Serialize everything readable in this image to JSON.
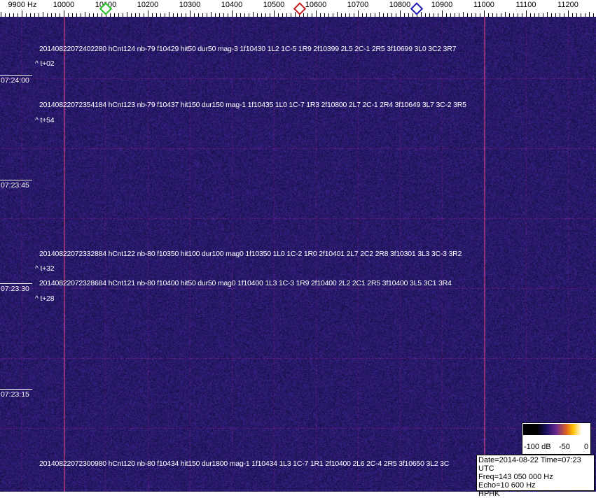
{
  "freq_scale": {
    "unit_label": "9900 Hz",
    "labels": [
      "10000",
      "10100",
      "10200",
      "10300",
      "10400",
      "10500",
      "10600",
      "10700",
      "10800",
      "10900",
      "11000",
      "11100",
      "11200"
    ],
    "markers": [
      {
        "name": "green-marker",
        "freq_hz": 10100,
        "color": "#22c322"
      },
      {
        "name": "red-marker",
        "freq_hz": 10562,
        "color": "#c81e1e"
      },
      {
        "name": "blue-marker",
        "freq_hz": 10840,
        "color": "#1e1eb4"
      }
    ]
  },
  "time_labels": [
    "07:24:00",
    "07:23:45",
    "07:23:30",
    "07:23:15"
  ],
  "events": [
    {
      "text": "20140822072402280 hCnt124 nb-79 f10429 hit50 dur50 mag-3 1f10430 1L2 1C-5 1R9 2f10399 2L5 2C-1 2R5 3f10699 3L0 3C2 3R7",
      "offset": "^ t+02"
    },
    {
      "text": "20140822072354184 hCnt123 nb-79 f10437 hit150 dur150 mag-1 1f10435 1L0 1C-7 1R3 2f10800 2L7 2C-1 2R4 3f10649 3L7 3C-2 3R5",
      "offset": "^ t+54"
    },
    {
      "text": "20140822072332884 hCnt122 nb-80 f10350 hit100 dur100 mag0 1f10350 1L0 1C-2 1R0 2f10401 2L7 2C2 2R8 3f10301 3L3 3C-3 3R2",
      "offset": "^ t+32"
    },
    {
      "text": "20140822072328684 hCnt121 nb-80 f10400 hit50 dur50 mag0 1f10400 1L3 1C-3 1R9 2f10400 2L2 2C1 2R5 3f10400 3L5 3C1 3R4",
      "offset": "^ t+28"
    },
    {
      "text": "20140822072300980 hCnt120 nb-80 f10434 hit150 dur1800 mag-1 1f10434 1L3 1C-7 1R1 2f10400 2L6 2C-4 2R5 3f10650 3L2 3C",
      "offset": ""
    }
  ],
  "legend": {
    "labels": [
      "-100 dB",
      "-50",
      "0"
    ]
  },
  "info": {
    "date_time": "Date=2014-08-22 Time=07:23 UTC",
    "freq": "Freq=143 050 000 Hz",
    "echo": "Echo=10 600 Hz",
    "station": "HPHK"
  },
  "colors": {
    "background": "#1e1a5a",
    "carrier_line": "#c84a6a"
  }
}
